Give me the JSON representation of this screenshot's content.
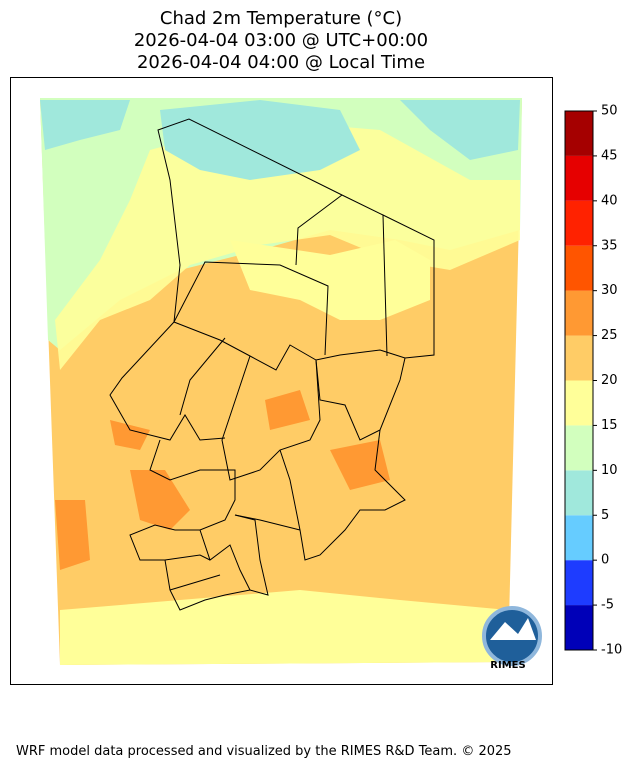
{
  "title": [
    "Chad 2m Temperature (°C)",
    "2026-04-04 03:00 @ UTC+00:00",
    "2026-04-04 04:00 @ Local Time"
  ],
  "colorbar": {
    "ticks": [
      -10,
      -5,
      0,
      5,
      10,
      15,
      20,
      25,
      30,
      35,
      40,
      45,
      50
    ],
    "colors": [
      "#0000b8",
      "#1e3cff",
      "#66ccff",
      "#a0e8dc",
      "#d2ffbe",
      "#ffff99",
      "#ffcc66",
      "#ff9933",
      "#ff5500",
      "#ff2200",
      "#e60000",
      "#a50000"
    ]
  },
  "logo": "RIMES",
  "footer": "WRF model data processed and visualized by the RIMES R&D Team. © 2025"
}
